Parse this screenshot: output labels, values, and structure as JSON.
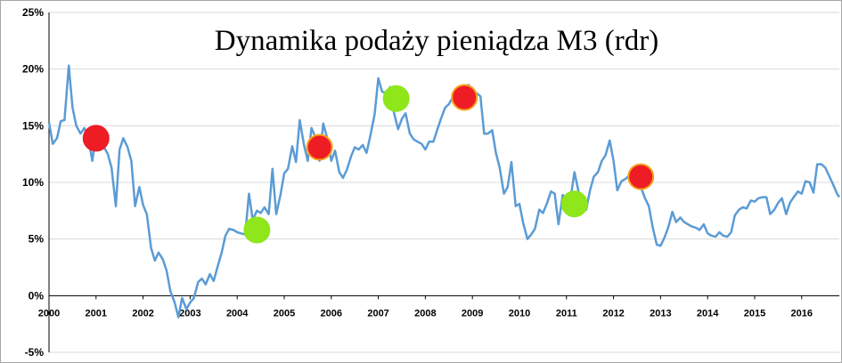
{
  "chart_data": {
    "type": "line",
    "title": "Dynamika podaży pieniądza M3 (rdr)",
    "xlabel": "",
    "ylabel": "",
    "xlim": [
      2000,
      2016.8
    ],
    "ylim": [
      -5,
      25
    ],
    "y_ticks": [
      "-5%",
      "0%",
      "5%",
      "10%",
      "15%",
      "20%",
      "25%"
    ],
    "x_ticks": [
      "2000",
      "2001",
      "2002",
      "2003",
      "2004",
      "2005",
      "2006",
      "2007",
      "2008",
      "2009",
      "2010",
      "2011",
      "2012",
      "2013",
      "2014",
      "2015",
      "2016"
    ],
    "grid": true,
    "legend": "none",
    "series": [
      {
        "color": "#5b9bd5",
        "points": [
          [
            2000.0,
            15.3
          ],
          [
            2000.08,
            13.4
          ],
          [
            2000.17,
            13.9
          ],
          [
            2000.25,
            15.4
          ],
          [
            2000.33,
            15.5
          ],
          [
            2000.42,
            20.3
          ],
          [
            2000.5,
            16.6
          ],
          [
            2000.58,
            15.0
          ],
          [
            2000.67,
            14.3
          ],
          [
            2000.75,
            14.8
          ],
          [
            2000.83,
            14.0
          ],
          [
            2000.92,
            11.9
          ],
          [
            2001.0,
            14.3
          ],
          [
            2001.08,
            14.1
          ],
          [
            2001.17,
            13.1
          ],
          [
            2001.25,
            12.5
          ],
          [
            2001.33,
            11.3
          ],
          [
            2001.42,
            7.9
          ],
          [
            2001.5,
            12.9
          ],
          [
            2001.58,
            13.9
          ],
          [
            2001.67,
            13.1
          ],
          [
            2001.75,
            11.9
          ],
          [
            2001.83,
            7.9
          ],
          [
            2001.92,
            9.6
          ],
          [
            2002.0,
            8.0
          ],
          [
            2002.08,
            7.2
          ],
          [
            2002.17,
            4.2
          ],
          [
            2002.25,
            3.1
          ],
          [
            2002.33,
            3.8
          ],
          [
            2002.42,
            3.2
          ],
          [
            2002.5,
            2.2
          ],
          [
            2002.58,
            0.4
          ],
          [
            2002.67,
            -0.6
          ],
          [
            2002.75,
            -1.9
          ],
          [
            2002.83,
            -0.2
          ],
          [
            2002.92,
            -1.2
          ],
          [
            2003.0,
            -0.6
          ],
          [
            2003.08,
            -0.2
          ],
          [
            2003.17,
            1.2
          ],
          [
            2003.25,
            1.5
          ],
          [
            2003.33,
            1.0
          ],
          [
            2003.42,
            1.9
          ],
          [
            2003.5,
            1.3
          ],
          [
            2003.58,
            2.5
          ],
          [
            2003.67,
            3.8
          ],
          [
            2003.75,
            5.3
          ],
          [
            2003.83,
            5.9
          ],
          [
            2003.92,
            5.8
          ],
          [
            2004.0,
            5.6
          ],
          [
            2004.08,
            5.5
          ],
          [
            2004.17,
            5.4
          ],
          [
            2004.25,
            9.0
          ],
          [
            2004.33,
            6.7
          ],
          [
            2004.42,
            7.5
          ],
          [
            2004.5,
            7.3
          ],
          [
            2004.58,
            7.8
          ],
          [
            2004.67,
            7.2
          ],
          [
            2004.75,
            11.2
          ],
          [
            2004.83,
            7.2
          ],
          [
            2004.92,
            8.9
          ],
          [
            2005.0,
            10.8
          ],
          [
            2005.08,
            11.2
          ],
          [
            2005.17,
            13.2
          ],
          [
            2005.25,
            11.8
          ],
          [
            2005.33,
            15.5
          ],
          [
            2005.42,
            13.3
          ],
          [
            2005.5,
            11.9
          ],
          [
            2005.58,
            14.8
          ],
          [
            2005.67,
            13.9
          ],
          [
            2005.75,
            11.9
          ],
          [
            2005.83,
            15.2
          ],
          [
            2005.92,
            13.8
          ],
          [
            2006.0,
            11.9
          ],
          [
            2006.08,
            12.8
          ],
          [
            2006.17,
            10.9
          ],
          [
            2006.25,
            10.4
          ],
          [
            2006.33,
            11.1
          ],
          [
            2006.42,
            12.3
          ],
          [
            2006.5,
            13.1
          ],
          [
            2006.58,
            12.9
          ],
          [
            2006.67,
            13.3
          ],
          [
            2006.75,
            12.6
          ],
          [
            2006.83,
            14.1
          ],
          [
            2006.92,
            16.0
          ],
          [
            2007.0,
            19.2
          ],
          [
            2007.08,
            18.0
          ],
          [
            2007.17,
            17.9
          ],
          [
            2007.25,
            18.4
          ],
          [
            2007.33,
            16.2
          ],
          [
            2007.42,
            14.7
          ],
          [
            2007.5,
            15.6
          ],
          [
            2007.58,
            16.1
          ],
          [
            2007.67,
            14.3
          ],
          [
            2007.75,
            13.8
          ],
          [
            2007.83,
            13.6
          ],
          [
            2007.92,
            13.4
          ],
          [
            2008.0,
            12.9
          ],
          [
            2008.08,
            13.6
          ],
          [
            2008.17,
            13.6
          ],
          [
            2008.25,
            14.6
          ],
          [
            2008.33,
            15.6
          ],
          [
            2008.42,
            16.6
          ],
          [
            2008.5,
            16.9
          ],
          [
            2008.58,
            17.5
          ],
          [
            2008.67,
            17.6
          ],
          [
            2008.75,
            17.9
          ],
          [
            2008.83,
            18.1
          ],
          [
            2008.92,
            18.6
          ],
          [
            2009.0,
            18.1
          ],
          [
            2009.08,
            17.9
          ],
          [
            2009.17,
            17.6
          ],
          [
            2009.25,
            14.3
          ],
          [
            2009.33,
            14.3
          ],
          [
            2009.42,
            14.6
          ],
          [
            2009.5,
            12.6
          ],
          [
            2009.58,
            11.3
          ],
          [
            2009.67,
            9.0
          ],
          [
            2009.75,
            9.6
          ],
          [
            2009.83,
            11.8
          ],
          [
            2009.92,
            7.9
          ],
          [
            2010.0,
            8.1
          ],
          [
            2010.08,
            6.4
          ],
          [
            2010.17,
            5.0
          ],
          [
            2010.25,
            5.4
          ],
          [
            2010.33,
            5.9
          ],
          [
            2010.42,
            7.6
          ],
          [
            2010.5,
            7.3
          ],
          [
            2010.58,
            8.1
          ],
          [
            2010.67,
            9.2
          ],
          [
            2010.75,
            9.0
          ],
          [
            2010.83,
            6.3
          ],
          [
            2010.92,
            8.9
          ],
          [
            2011.0,
            8.3
          ],
          [
            2011.08,
            8.4
          ],
          [
            2011.17,
            10.9
          ],
          [
            2011.25,
            9.3
          ],
          [
            2011.33,
            7.4
          ],
          [
            2011.42,
            7.6
          ],
          [
            2011.5,
            9.3
          ],
          [
            2011.58,
            10.5
          ],
          [
            2011.67,
            10.9
          ],
          [
            2011.75,
            11.9
          ],
          [
            2011.83,
            12.4
          ],
          [
            2011.92,
            13.7
          ],
          [
            2012.0,
            11.9
          ],
          [
            2012.08,
            9.3
          ],
          [
            2012.17,
            10.1
          ],
          [
            2012.25,
            10.3
          ],
          [
            2012.33,
            10.6
          ],
          [
            2012.42,
            10.9
          ],
          [
            2012.5,
            10.8
          ],
          [
            2012.58,
            9.6
          ],
          [
            2012.67,
            8.6
          ],
          [
            2012.75,
            7.9
          ],
          [
            2012.83,
            6.1
          ],
          [
            2012.92,
            4.5
          ],
          [
            2013.0,
            4.4
          ],
          [
            2013.08,
            5.1
          ],
          [
            2013.17,
            6.1
          ],
          [
            2013.25,
            7.4
          ],
          [
            2013.33,
            6.5
          ],
          [
            2013.42,
            6.9
          ],
          [
            2013.5,
            6.5
          ],
          [
            2013.58,
            6.3
          ],
          [
            2013.67,
            6.1
          ],
          [
            2013.75,
            6.0
          ],
          [
            2013.83,
            5.8
          ],
          [
            2013.92,
            6.3
          ],
          [
            2014.0,
            5.5
          ],
          [
            2014.08,
            5.3
          ],
          [
            2014.17,
            5.2
          ],
          [
            2014.25,
            5.6
          ],
          [
            2014.33,
            5.3
          ],
          [
            2014.42,
            5.2
          ],
          [
            2014.5,
            5.6
          ],
          [
            2014.58,
            7.1
          ],
          [
            2014.67,
            7.6
          ],
          [
            2014.75,
            7.8
          ],
          [
            2014.83,
            7.7
          ],
          [
            2014.92,
            8.4
          ],
          [
            2015.0,
            8.3
          ],
          [
            2015.08,
            8.6
          ],
          [
            2015.17,
            8.7
          ],
          [
            2015.25,
            8.7
          ],
          [
            2015.33,
            7.2
          ],
          [
            2015.42,
            7.6
          ],
          [
            2015.5,
            8.2
          ],
          [
            2015.58,
            8.6
          ],
          [
            2015.67,
            7.2
          ],
          [
            2015.75,
            8.2
          ],
          [
            2015.83,
            8.7
          ],
          [
            2015.92,
            9.2
          ],
          [
            2016.0,
            9.0
          ],
          [
            2016.08,
            10.1
          ],
          [
            2016.17,
            10.0
          ],
          [
            2016.25,
            9.1
          ],
          [
            2016.33,
            11.6
          ],
          [
            2016.42,
            11.6
          ],
          [
            2016.5,
            11.3
          ],
          [
            2016.58,
            10.6
          ],
          [
            2016.67,
            9.8
          ],
          [
            2016.75,
            9.0
          ],
          [
            2016.8,
            8.7
          ]
        ]
      }
    ],
    "markers": [
      {
        "x": 2001.0,
        "y": 13.9,
        "color": "#ee1c25",
        "outline": "#ee1c25"
      },
      {
        "x": 2004.42,
        "y": 5.8,
        "color": "#8ee61b",
        "outline": "#8ee61b"
      },
      {
        "x": 2005.75,
        "y": 13.1,
        "color": "#ee1c25",
        "outline": "#f5a31a"
      },
      {
        "x": 2007.38,
        "y": 17.4,
        "color": "#8ee61b",
        "outline": "#8ee61b"
      },
      {
        "x": 2008.83,
        "y": 17.5,
        "color": "#ee1c25",
        "outline": "#f5a31a"
      },
      {
        "x": 2011.17,
        "y": 8.1,
        "color": "#8ee61b",
        "outline": "#8ee61b"
      },
      {
        "x": 2012.58,
        "y": 10.5,
        "color": "#ee1c25",
        "outline": "#f5a31a"
      }
    ]
  }
}
